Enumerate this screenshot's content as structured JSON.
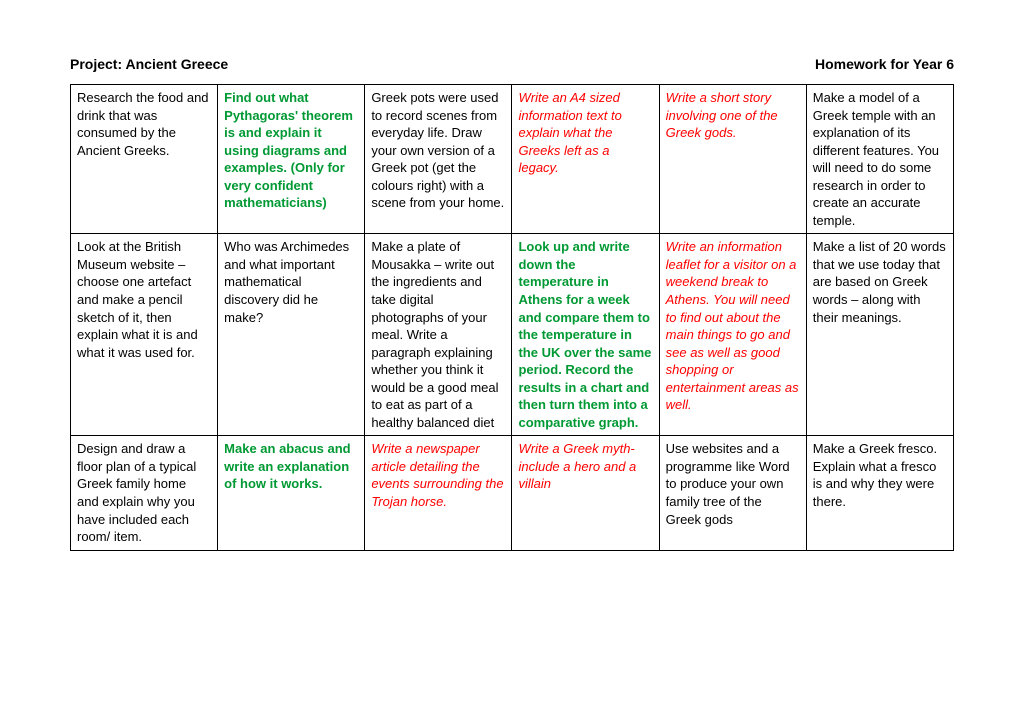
{
  "header": {
    "left": "Project: Ancient Greece",
    "right": "Homework for Year 6"
  },
  "colors": {
    "black": "#000000",
    "green": "#009933",
    "red": "#ff0000",
    "border": "#000000",
    "background": "#ffffff"
  },
  "grid": {
    "rows": [
      [
        {
          "text": "Research the food and drink that was consumed by the Ancient Greeks.",
          "style": "normal"
        },
        {
          "text": "Find out what Pythagoras' theorem is and explain it using diagrams and examples. (Only for very confident mathematicians)",
          "style": "green"
        },
        {
          "text": "Greek pots were used to record scenes from everyday life. Draw your own version of a Greek pot (get the colours right) with a scene from your home.",
          "style": "normal"
        },
        {
          "text": "Write an A4 sized information text to explain what the Greeks left as a legacy.",
          "style": "red"
        },
        {
          "text": "Write a short story involving one of the Greek gods.",
          "style": "red"
        },
        {
          "text": "Make a model of a Greek temple with an explanation of its different features. You will need to do some research in order to create an accurate temple.",
          "style": "normal"
        }
      ],
      [
        {
          "text": "Look at the British Museum website – choose one artefact and make a pencil sketch of it, then explain what it is and what it was used for.",
          "style": "normal"
        },
        {
          "text": "Who was Archimedes and what important mathematical discovery did he make?",
          "style": "normal"
        },
        {
          "text": "Make a plate of Mousakka – write out the ingredients and take digital photographs of your meal. Write a paragraph explaining whether you think it would be a good meal to eat as part of a healthy balanced diet",
          "style": "normal"
        },
        {
          "text": "Look up and write down the temperature in Athens for a week and compare them to the temperature in the UK over the same period. Record the results in a chart and then turn them into a comparative graph.",
          "style": "green"
        },
        {
          "text": "Write an information leaflet for a visitor on a weekend break to Athens. You will need to find out about the main things to go and see as well as good shopping or entertainment areas as well.",
          "style": "red"
        },
        {
          "text": "Make a list of 20 words that we use today that are based on Greek words – along with their meanings.",
          "style": "normal"
        }
      ],
      [
        {
          "text": "Design and draw a floor plan of a typical Greek family home and explain why you have included each room/ item.",
          "style": "normal"
        },
        {
          "text": "Make an abacus and write an explanation of how it works.",
          "style": "green"
        },
        {
          "text": "Write a newspaper article detailing the events surrounding the Trojan horse.",
          "style": "red"
        },
        {
          "text": "Write a Greek myth- include a hero and a villain",
          "style": "red"
        },
        {
          "text": "Use websites and a programme like Word to produce your own family tree of the Greek gods",
          "style": "normal"
        },
        {
          "text": "Make a Greek fresco.\nExplain what a fresco is and why they were there.",
          "style": "normal"
        }
      ]
    ]
  }
}
